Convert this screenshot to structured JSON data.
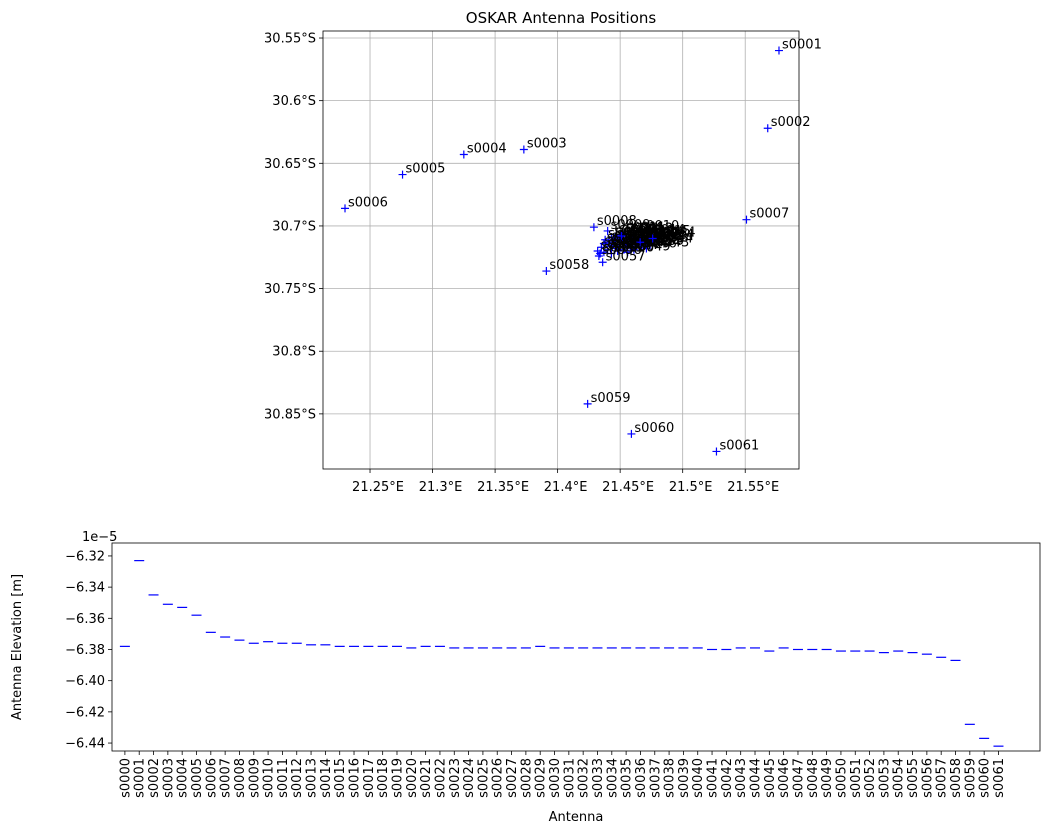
{
  "chart_data": [
    {
      "type": "scatter",
      "title": "OSKAR Antenna Positions",
      "color": "#0000ff",
      "marker": "+",
      "grid": true,
      "xlim": [
        21.2124,
        21.593
      ],
      "ylim": [
        -30.894,
        -30.5444
      ],
      "xticks": [
        {
          "value": 21.25,
          "label": "21.25°E"
        },
        {
          "value": 21.3,
          "label": "21.3°E"
        },
        {
          "value": 21.35,
          "label": "21.35°E"
        },
        {
          "value": 21.4,
          "label": "21.4°E"
        },
        {
          "value": 21.45,
          "label": "21.45°E"
        },
        {
          "value": 21.5,
          "label": "21.5°E"
        },
        {
          "value": 21.55,
          "label": "21.55°E"
        }
      ],
      "yticks": [
        {
          "value": -30.85,
          "label": "30.85°S"
        },
        {
          "value": -30.8,
          "label": "30.8°S"
        },
        {
          "value": -30.75,
          "label": "30.75°S"
        },
        {
          "value": -30.7,
          "label": "30.7°S"
        },
        {
          "value": -30.65,
          "label": "30.65°S"
        },
        {
          "value": -30.6,
          "label": "30.6°S"
        },
        {
          "value": -30.55,
          "label": "30.55°S"
        }
      ],
      "labels": [
        "s0000",
        "s0001",
        "s0002",
        "s0003",
        "s0004",
        "s0005",
        "s0006",
        "s0007",
        "s0008",
        "s0009",
        "s0010",
        "s0011",
        "s0012",
        "s0013",
        "s0014",
        "s0015",
        "s0016",
        "s0017",
        "s0018",
        "s0019",
        "s0020",
        "s0021",
        "s0022",
        "s0023",
        "s0024",
        "s0025",
        "s0026",
        "s0027",
        "s0028",
        "s0029",
        "s0030",
        "s0031",
        "s0032",
        "s0033",
        "s0034",
        "s0035",
        "s0036",
        "s0037",
        "s0038",
        "s0039",
        "s0040",
        "s0041",
        "s0042",
        "s0043",
        "s0044",
        "s0045",
        "s0046",
        "s0047",
        "s0048",
        "s0049",
        "s0050",
        "s0051",
        "s0052",
        "s0053",
        "s0054",
        "s0055",
        "s0056",
        "s0057",
        "s0058",
        "s0059",
        "s0060",
        "s0061"
      ],
      "x": [
        21.455,
        21.577,
        21.568,
        21.373,
        21.325,
        21.276,
        21.23,
        21.551,
        21.429,
        21.44,
        21.463,
        21.452,
        21.447,
        21.458,
        21.468,
        21.472,
        21.443,
        21.45,
        21.46,
        21.466,
        21.438,
        21.445,
        21.462,
        21.47,
        21.475,
        21.449,
        21.456,
        21.441,
        21.465,
        21.452,
        21.459,
        21.469,
        21.437,
        21.446,
        21.474,
        21.455,
        21.463,
        21.442,
        21.45,
        21.467,
        21.435,
        21.458,
        21.446,
        21.471,
        21.453,
        21.44,
        21.461,
        21.448,
        21.437,
        21.456,
        21.443,
        21.434,
        21.466,
        21.451,
        21.476,
        21.432,
        21.433,
        21.436,
        21.391,
        21.424,
        21.459,
        21.527
      ],
      "values": [
        -30.711,
        -30.56,
        -30.622,
        -30.639,
        -30.643,
        -30.659,
        -30.686,
        -30.695,
        -30.701,
        -30.704,
        -30.705,
        -30.706,
        -30.707,
        -30.707,
        -30.708,
        -30.709,
        -30.709,
        -30.709,
        -30.71,
        -30.71,
        -30.711,
        -30.711,
        -30.711,
        -30.711,
        -30.712,
        -30.712,
        -30.712,
        -30.713,
        -30.713,
        -30.714,
        -30.714,
        -30.714,
        -30.714,
        -30.715,
        -30.715,
        -30.715,
        -30.716,
        -30.716,
        -30.716,
        -30.717,
        -30.717,
        -30.717,
        -30.718,
        -30.718,
        -30.719,
        -30.719,
        -30.719,
        -30.72,
        -30.721,
        -30.721,
        -30.722,
        -30.722,
        -30.713,
        -30.708,
        -30.71,
        -30.72,
        -30.724,
        -30.729,
        -30.736,
        -30.842,
        -30.866,
        -30.88
      ]
    },
    {
      "type": "scatter",
      "color": "#0000ff",
      "marker": "_",
      "x_label": "Antenna",
      "y_label": "Antenna Elevation [m]",
      "y_offset_label": "1e−5",
      "ylim": [
        -6.4451,
        -6.3117
      ],
      "yticks": [
        {
          "value": -6.44,
          "label": "−6.44"
        },
        {
          "value": -6.42,
          "label": "−6.42"
        },
        {
          "value": -6.4,
          "label": "−6.40"
        },
        {
          "value": -6.38,
          "label": "−6.38"
        },
        {
          "value": -6.36,
          "label": "−6.36"
        },
        {
          "value": -6.34,
          "label": "−6.34"
        },
        {
          "value": -6.32,
          "label": "−6.32"
        }
      ],
      "categories": [
        "s0000",
        "s0001",
        "s0002",
        "s0003",
        "s0004",
        "s0005",
        "s0006",
        "s0007",
        "s0008",
        "s0009",
        "s0010",
        "s0011",
        "s0012",
        "s0013",
        "s0014",
        "s0015",
        "s0016",
        "s0017",
        "s0018",
        "s0019",
        "s0020",
        "s0021",
        "s0022",
        "s0023",
        "s0024",
        "s0025",
        "s0026",
        "s0027",
        "s0028",
        "s0029",
        "s0030",
        "s0031",
        "s0032",
        "s0033",
        "s0034",
        "s0035",
        "s0036",
        "s0037",
        "s0038",
        "s0039",
        "s0040",
        "s0041",
        "s0042",
        "s0043",
        "s0044",
        "s0045",
        "s0046",
        "s0047",
        "s0048",
        "s0049",
        "s0050",
        "s0051",
        "s0052",
        "s0053",
        "s0054",
        "s0055",
        "s0056",
        "s0057",
        "s0058",
        "s0059",
        "s0060",
        "s0061"
      ],
      "values": [
        -6.378,
        -6.323,
        -6.345,
        -6.351,
        -6.353,
        -6.358,
        -6.369,
        -6.372,
        -6.374,
        -6.376,
        -6.375,
        -6.376,
        -6.376,
        -6.377,
        -6.377,
        -6.378,
        -6.378,
        -6.378,
        -6.378,
        -6.378,
        -6.379,
        -6.378,
        -6.378,
        -6.379,
        -6.379,
        -6.379,
        -6.379,
        -6.379,
        -6.379,
        -6.378,
        -6.379,
        -6.379,
        -6.379,
        -6.379,
        -6.379,
        -6.379,
        -6.379,
        -6.379,
        -6.379,
        -6.379,
        -6.379,
        -6.38,
        -6.38,
        -6.379,
        -6.379,
        -6.381,
        -6.379,
        -6.38,
        -6.38,
        -6.38,
        -6.381,
        -6.381,
        -6.381,
        -6.382,
        -6.381,
        -6.382,
        -6.383,
        -6.385,
        -6.387,
        -6.428,
        -6.437,
        -6.442
      ]
    }
  ]
}
